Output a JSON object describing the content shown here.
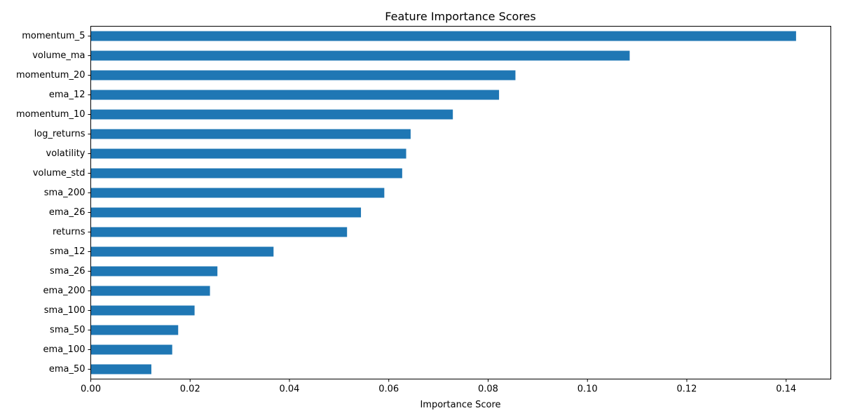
{
  "chart_data": {
    "type": "bar",
    "orientation": "horizontal",
    "title": "Feature Importance Scores",
    "xlabel": "Importance Score",
    "ylabel": "",
    "xlim": [
      0,
      0.149
    ],
    "grid": false,
    "bar_color": "#1f77b4",
    "categories": [
      "momentum_5",
      "volume_ma",
      "momentum_20",
      "ema_12",
      "momentum_10",
      "log_returns",
      "volatility",
      "volume_std",
      "sma_200",
      "ema_26",
      "returns",
      "sma_12",
      "sma_26",
      "ema_200",
      "sma_100",
      "sma_50",
      "ema_100",
      "ema_50"
    ],
    "values": [
      0.142,
      0.1085,
      0.0855,
      0.0822,
      0.0729,
      0.0644,
      0.0635,
      0.0627,
      0.0591,
      0.0544,
      0.0516,
      0.0368,
      0.0255,
      0.024,
      0.0209,
      0.0176,
      0.0164,
      0.0122
    ],
    "x_ticks": [
      0.0,
      0.02,
      0.04,
      0.06,
      0.08,
      0.1,
      0.12,
      0.14
    ],
    "x_tick_labels": [
      "0.00",
      "0.02",
      "0.04",
      "0.06",
      "0.08",
      "0.10",
      "0.12",
      "0.14"
    ]
  }
}
